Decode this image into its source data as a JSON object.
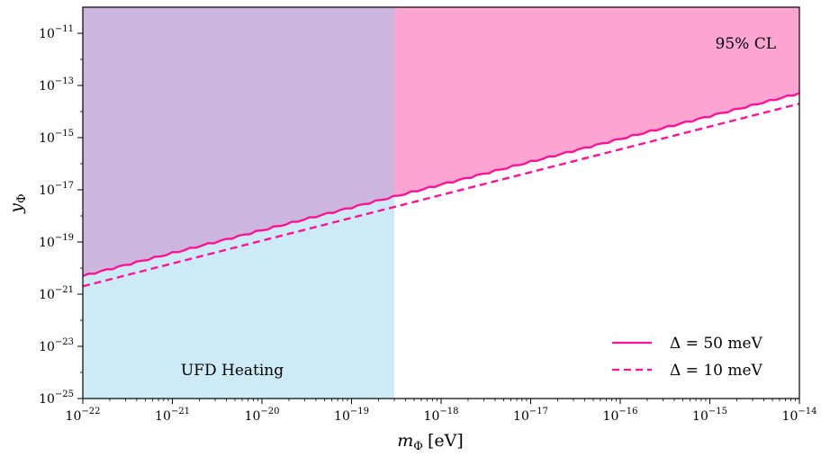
{
  "chart_data": {
    "type": "area",
    "x_scale": "log",
    "y_scale": "log",
    "xlim": [
      1e-22,
      1e-14
    ],
    "ylim": [
      1e-25,
      1e-10
    ],
    "xlabel": {
      "main": "m",
      "sub": "Φ",
      "unit": "[eV]"
    },
    "ylabel": {
      "main": "y",
      "sub": "Φ"
    },
    "x_ticks": [
      {
        "value": 1e-22,
        "base": "10",
        "exp": "−22"
      },
      {
        "value": 1e-21,
        "base": "10",
        "exp": "−21"
      },
      {
        "value": 1e-20,
        "base": "10",
        "exp": "−20"
      },
      {
        "value": 1e-19,
        "base": "10",
        "exp": "−19"
      },
      {
        "value": 1e-18,
        "base": "10",
        "exp": "−18"
      },
      {
        "value": 1e-17,
        "base": "10",
        "exp": "−17"
      },
      {
        "value": 1e-16,
        "base": "10",
        "exp": "−16"
      },
      {
        "value": 1e-15,
        "base": "10",
        "exp": "−15"
      },
      {
        "value": 1e-14,
        "base": "10",
        "exp": "−14"
      }
    ],
    "y_ticks": [
      {
        "value": 1e-25,
        "base": "10",
        "exp": "−25"
      },
      {
        "value": 1e-23,
        "base": "10",
        "exp": "−23"
      },
      {
        "value": 1e-21,
        "base": "10",
        "exp": "−21"
      },
      {
        "value": 1e-19,
        "base": "10",
        "exp": "−19"
      },
      {
        "value": 1e-17,
        "base": "10",
        "exp": "−17"
      },
      {
        "value": 1e-15,
        "base": "10",
        "exp": "−15"
      },
      {
        "value": 1e-13,
        "base": "10",
        "exp": "−13"
      },
      {
        "value": 1e-11,
        "base": "10",
        "exp": "−11"
      }
    ],
    "series": [
      {
        "name": "Δ = 50 meV",
        "style": "solid",
        "color": "#ff1493",
        "x": [
          1e-22,
          1e-14
        ],
        "y": [
          5e-21,
          5e-14
        ]
      },
      {
        "name": "Δ = 10 meV",
        "style": "dashed",
        "color": "#ff1493",
        "x": [
          1e-22,
          1e-14
        ],
        "y": [
          2e-21,
          2e-14
        ]
      }
    ],
    "regions": [
      {
        "label": "95% CL",
        "color": "#ff69b4",
        "opacity": 0.6,
        "description": "excluded above Δ = 50 meV line",
        "x_range": [
          1e-22,
          1e-14
        ]
      },
      {
        "label": "UFD Heating",
        "color": "#87ceeb",
        "opacity": 0.42,
        "x_range": [
          1e-22,
          3e-19
        ],
        "y_range": [
          1e-25,
          1e-10
        ]
      }
    ],
    "legend_position": "bottom-right",
    "grid": false
  },
  "colors": {
    "pink": "#ff1493",
    "cl_fill": "#ff69b4",
    "ufd_fill": "#87ceeb"
  }
}
